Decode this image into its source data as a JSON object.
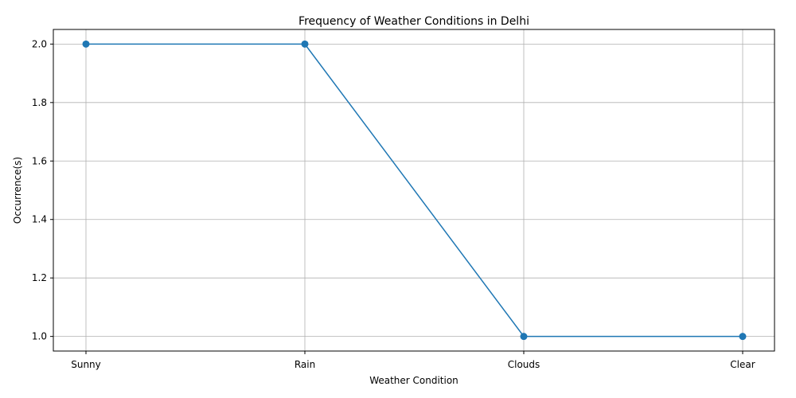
{
  "chart_data": {
    "type": "line",
    "title": "Frequency of Weather Conditions in Delhi",
    "xlabel": "Weather Condition",
    "ylabel": "Occurrence(s)",
    "categories": [
      "Sunny",
      "Rain",
      "Clouds",
      "Clear"
    ],
    "series": [
      {
        "values": [
          2,
          2,
          1,
          1
        ]
      }
    ],
    "ylim": [
      0.95,
      2.05
    ],
    "yticks": [
      "1.0",
      "1.2",
      "1.4",
      "1.6",
      "1.8",
      "2.0"
    ],
    "grid": true,
    "marker": "circle",
    "colors": {
      "line": "#1f77b4",
      "grid": "#b0b0b0",
      "axes": "#000000"
    }
  }
}
